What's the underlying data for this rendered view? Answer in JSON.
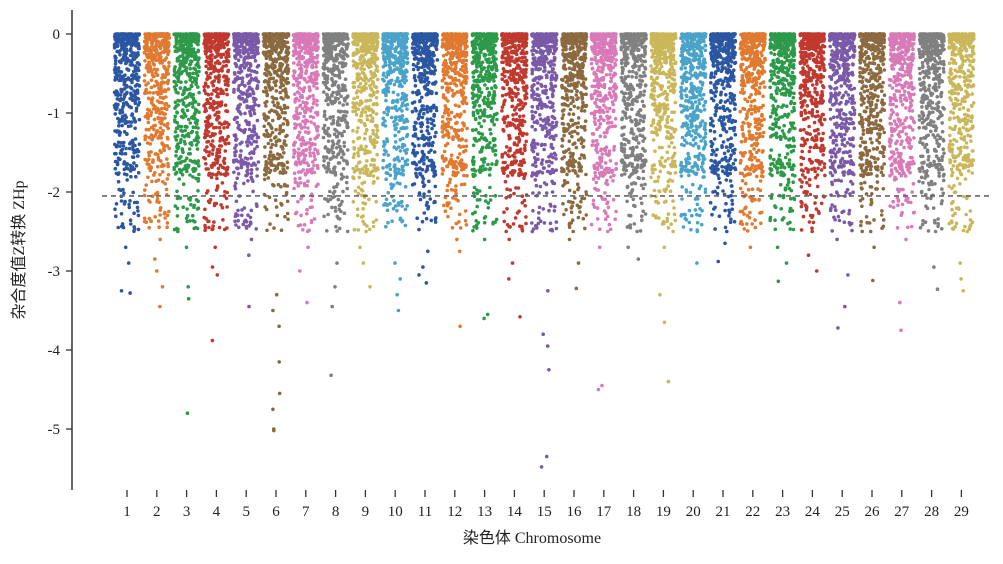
{
  "chart_data": {
    "type": "scatter",
    "subtype": "manhattan",
    "xlabel": "染色体 Chromosome",
    "ylabel": "杂合度值Z转换 ZHp",
    "ylim": [
      -5.7,
      0.3
    ],
    "yticks": [
      0,
      -1,
      -2,
      -3,
      -4,
      -5
    ],
    "ytick_labels": [
      "0",
      "-1",
      "-2",
      "-3",
      "-4",
      "-5"
    ],
    "threshold": -2.05,
    "threshold_style": "dashed gray",
    "grid": false,
    "categories": [
      "1",
      "2",
      "3",
      "4",
      "5",
      "6",
      "7",
      "8",
      "9",
      "10",
      "11",
      "12",
      "13",
      "14",
      "15",
      "16",
      "17",
      "18",
      "19",
      "20",
      "21",
      "22",
      "23",
      "24",
      "25",
      "26",
      "27",
      "28",
      "29"
    ],
    "colors": [
      "#2a56a2",
      "#e07a30",
      "#2d9a4a",
      "#c0392f",
      "#7a5aa8",
      "#8c6a40",
      "#d97ab8",
      "#808080",
      "#c9b75a",
      "#4aa3c8",
      "#2a56a2",
      "#e07a30",
      "#2d9a4a",
      "#c0392f",
      "#7a5aa8",
      "#8c6a40",
      "#d97ab8",
      "#808080",
      "#c9b75a",
      "#4aa3c8",
      "#2a56a2",
      "#e07a30",
      "#2d9a4a",
      "#c0392f",
      "#7a5aa8",
      "#8c6a40",
      "#d97ab8",
      "#808080",
      "#c9b75a"
    ],
    "series": [
      {
        "name": "1",
        "min": -3.3,
        "outliers": [
          -2.7,
          -2.9,
          -3.25,
          -3.28,
          -2.45
        ]
      },
      {
        "name": "2",
        "min": -3.45,
        "outliers": [
          -2.6,
          -2.85,
          -3.0,
          -3.2,
          -3.45
        ]
      },
      {
        "name": "3",
        "min": -4.8,
        "outliers": [
          -2.3,
          -2.7,
          -3.2,
          -3.35,
          -4.8
        ]
      },
      {
        "name": "4",
        "min": -3.9,
        "outliers": [
          -2.45,
          -2.7,
          -2.95,
          -3.05,
          -3.88
        ]
      },
      {
        "name": "5",
        "min": -3.45,
        "outliers": [
          -2.4,
          -2.6,
          -2.8,
          -3.45
        ]
      },
      {
        "name": "6",
        "min": -5.02,
        "outliers": [
          -3.3,
          -3.5,
          -3.7,
          -4.15,
          -4.55,
          -4.75,
          -5.0,
          -5.02
        ]
      },
      {
        "name": "7",
        "min": -3.4,
        "outliers": [
          -2.5,
          -2.7,
          -3.0,
          -3.4
        ]
      },
      {
        "name": "8",
        "min": -4.32,
        "outliers": [
          -2.9,
          -3.2,
          -3.45,
          -4.32
        ]
      },
      {
        "name": "9",
        "min": -3.2,
        "outliers": [
          -2.5,
          -2.7,
          -2.9,
          -3.2
        ]
      },
      {
        "name": "10",
        "min": -3.55,
        "outliers": [
          -2.9,
          -3.1,
          -3.3,
          -3.5
        ]
      },
      {
        "name": "11",
        "min": -3.2,
        "outliers": [
          -2.75,
          -2.95,
          -3.05,
          -3.15
        ]
      },
      {
        "name": "12",
        "min": -3.7,
        "outliers": [
          -2.4,
          -2.6,
          -2.75,
          -3.7
        ]
      },
      {
        "name": "13",
        "min": -3.62,
        "outliers": [
          -2.6,
          -3.55,
          -3.6
        ]
      },
      {
        "name": "14",
        "min": -3.58,
        "outliers": [
          -2.6,
          -2.9,
          -3.1,
          -3.58
        ]
      },
      {
        "name": "15",
        "min": -5.5,
        "outliers": [
          -3.25,
          -3.8,
          -3.95,
          -4.25,
          -5.35,
          -5.48
        ]
      },
      {
        "name": "16",
        "min": -3.25,
        "outliers": [
          -2.4,
          -2.6,
          -2.9,
          -3.22
        ]
      },
      {
        "name": "17",
        "min": -4.5,
        "outliers": [
          -2.5,
          -2.7,
          -4.45,
          -4.5
        ]
      },
      {
        "name": "18",
        "min": -2.9,
        "outliers": [
          -2.3,
          -2.5,
          -2.7,
          -2.85
        ]
      },
      {
        "name": "19",
        "min": -4.4,
        "outliers": [
          -2.7,
          -3.3,
          -3.65,
          -4.4
        ]
      },
      {
        "name": "20",
        "min": -2.95,
        "outliers": [
          -2.3,
          -2.5,
          -2.9
        ]
      },
      {
        "name": "21",
        "min": -2.9,
        "outliers": [
          -2.3,
          -2.5,
          -2.65,
          -2.88
        ]
      },
      {
        "name": "22",
        "min": -2.7,
        "outliers": [
          -2.1,
          -2.3,
          -2.45,
          -2.7
        ]
      },
      {
        "name": "23",
        "min": -3.15,
        "outliers": [
          -2.4,
          -2.7,
          -2.9,
          -3.13
        ]
      },
      {
        "name": "24",
        "min": -3.0,
        "outliers": [
          -2.3,
          -2.5,
          -2.8,
          -3.0
        ]
      },
      {
        "name": "25",
        "min": -3.75,
        "outliers": [
          -2.6,
          -3.05,
          -3.45,
          -3.72
        ]
      },
      {
        "name": "26",
        "min": -3.15,
        "outliers": [
          -2.5,
          -2.7,
          -3.12
        ]
      },
      {
        "name": "27",
        "min": -3.75,
        "outliers": [
          -2.6,
          -3.4,
          -3.75
        ]
      },
      {
        "name": "28",
        "min": -3.25,
        "outliers": [
          -2.5,
          -2.95,
          -3.23
        ]
      },
      {
        "name": "29",
        "min": -3.25,
        "outliers": [
          -2.5,
          -2.9,
          -3.1,
          -3.25
        ]
      }
    ]
  }
}
